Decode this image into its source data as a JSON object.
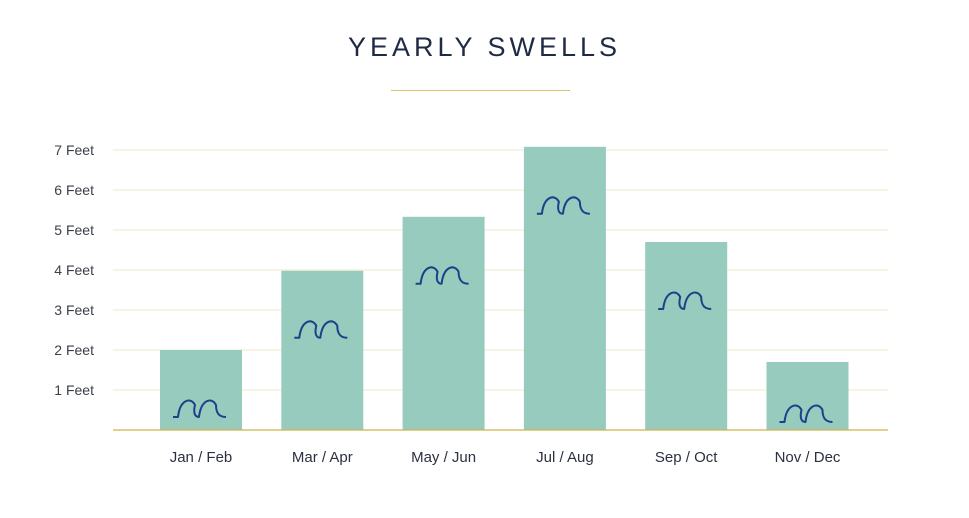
{
  "chart_data": {
    "type": "bar",
    "title": "YEARLY SWELLS",
    "categories": [
      "Jan / Feb",
      "Mar / Apr",
      "May / Jun",
      "Jul / Aug",
      "Sep / Oct",
      "Nov / Dec"
    ],
    "values": [
      2.0,
      3.98,
      5.33,
      7.08,
      4.7,
      1.7
    ],
    "ylim": [
      0,
      7
    ],
    "yticks": [
      1,
      2,
      3,
      4,
      5,
      6,
      7
    ],
    "ytick_labels": [
      "1 Feet",
      "2 Feet",
      "3 Feet",
      "4 Feet",
      "5 Feet",
      "6 Feet",
      "7 Feet"
    ],
    "grid": true,
    "bar_color": "#97cbbd",
    "wave_icon_color": "#1e3f8a",
    "grid_color": "#efeac9",
    "axis_color": "#cdb44a"
  },
  "colors": {
    "title": "#1f2a44",
    "accent_rule": "#d9c46a"
  },
  "icons": {
    "bar_marker": "wave-icon"
  }
}
